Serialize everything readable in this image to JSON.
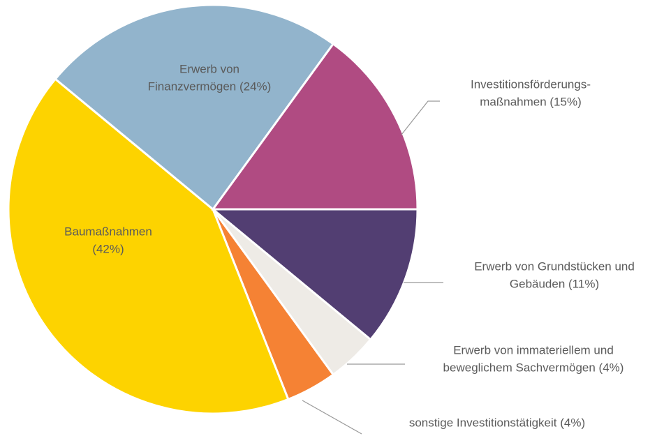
{
  "chart_data": {
    "type": "pie",
    "categories": [
      [
        "Erwerb von Grundstücken und",
        "Gebäuden (11%)"
      ],
      [
        "Erwerb von immateriellem und",
        "beweglichem Sachvermögen (4%)"
      ],
      [
        "sonstige Investitionstätigkeit (4%)"
      ],
      [
        "Baumaßnahmen",
        "(42%)"
      ],
      [
        "Erwerb von",
        "Finanzvermögen (24%)"
      ],
      [
        "Investitionsförderungs-",
        "maßnahmen (15%)"
      ]
    ],
    "values": [
      11,
      4,
      4,
      42,
      24,
      15
    ],
    "colors": [
      "#523e72",
      "#eeebe6",
      "#f58234",
      "#fdd300",
      "#92b4cc",
      "#b04b82"
    ]
  }
}
